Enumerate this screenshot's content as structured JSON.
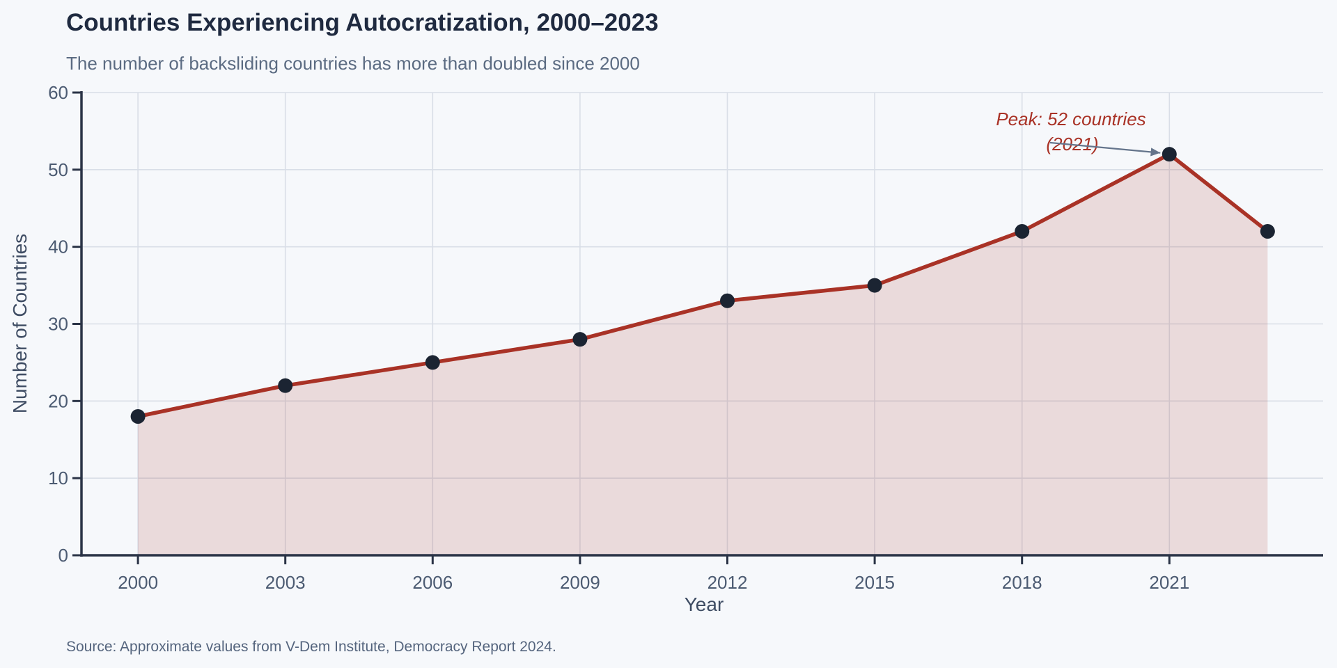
{
  "chart_data": {
    "type": "line",
    "title": "Countries Experiencing Autocratization, 2000–2023",
    "subtitle": "The number of backsliding countries has more than doubled since 2000",
    "xlabel": "Year",
    "ylabel": "Number of Countries",
    "source": "Source: Approximate values from V-Dem Institute, Democracy Report 2024.",
    "x": [
      2000,
      2003,
      2006,
      2009,
      2012,
      2015,
      2018,
      2021,
      2023
    ],
    "values": [
      18,
      22,
      25,
      28,
      33,
      35,
      42,
      52,
      42
    ],
    "xticks": [
      2000,
      2003,
      2006,
      2009,
      2012,
      2015,
      2018,
      2021
    ],
    "yticks": [
      0,
      10,
      20,
      30,
      40,
      50,
      60
    ],
    "xlim": [
      1998.85,
      2024.2
    ],
    "ylim": [
      0,
      60
    ],
    "grid": true,
    "legend": "none",
    "annotation": {
      "line1": "Peak: 52 countries",
      "line2": "(2021)",
      "target_x": 2021,
      "target_y": 52
    },
    "colors": {
      "line": "#A93226",
      "area_fill": "rgba(169,50,38,0.15)",
      "marker": "#1B2432",
      "grid": "#D9DEE7",
      "axis": "#2A3346",
      "tick_label": "#4C5B72",
      "title": "#1F2A40",
      "subtitle": "#5B6B82",
      "annotation_text": "#A93226",
      "arrow": "#64748B",
      "background": "#F6F8FB"
    }
  }
}
